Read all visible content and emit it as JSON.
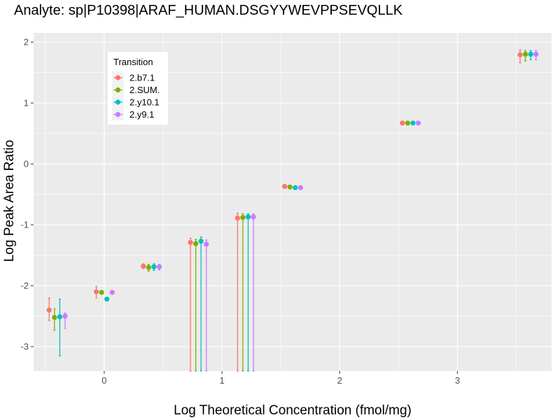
{
  "chart_data": {
    "type": "scatter",
    "title": "Analyte: sp|P10398|ARAF_HUMAN.DSGYYWEVPPSEVQLLK",
    "xlabel": "Log Theoretical Concentration (fmol/mg)",
    "ylabel": "Log Peak Area Ratio",
    "xlim": [
      -0.6,
      3.8
    ],
    "ylim": [
      -3.4,
      2.15
    ],
    "x_ticks": [
      0,
      1,
      2,
      3
    ],
    "x_tick_labels": [
      "0",
      "1",
      "2",
      "3"
    ],
    "y_ticks": [
      -3,
      -2,
      -1,
      0,
      1,
      2
    ],
    "y_tick_labels": [
      "-3",
      "-2",
      "-1",
      "0",
      "1",
      "2"
    ],
    "grid": true,
    "legend": {
      "title": "Transition",
      "position": "top-left-inside"
    },
    "series": [
      {
        "name": "2.b7.1",
        "color": "#F8766D",
        "points": [
          {
            "x": -0.4,
            "y": -2.4,
            "ymin": -2.57,
            "ymax": -2.2
          },
          {
            "x": 0.0,
            "y": -2.1,
            "ymin": -2.2,
            "ymax": -2.01
          },
          {
            "x": 0.4,
            "y": -1.68,
            "ymin": -1.72,
            "ymax": -1.64
          },
          {
            "x": 0.8,
            "y": -1.29,
            "ymin": -3.4,
            "ymax": -1.22
          },
          {
            "x": 1.2,
            "y": -0.89,
            "ymin": -3.4,
            "ymax": -0.81
          },
          {
            "x": 1.6,
            "y": -0.37,
            "ymin": -0.39,
            "ymax": -0.35
          },
          {
            "x": 2.6,
            "y": 0.67,
            "ymin": 0.66,
            "ymax": 0.68
          },
          {
            "x": 3.6,
            "y": 1.79,
            "ymin": 1.66,
            "ymax": 1.87
          }
        ]
      },
      {
        "name": "2.SUM.",
        "color": "#7CAE00",
        "points": [
          {
            "x": -0.4,
            "y": -2.52,
            "ymin": -2.73,
            "ymax": -2.38
          },
          {
            "x": 0.0,
            "y": -2.11,
            "ymin": -2.14,
            "ymax": -2.08
          },
          {
            "x": 0.4,
            "y": -1.7,
            "ymin": -1.76,
            "ymax": -1.65
          },
          {
            "x": 0.8,
            "y": -1.31,
            "ymin": -3.4,
            "ymax": -1.24
          },
          {
            "x": 1.2,
            "y": -0.88,
            "ymin": -3.4,
            "ymax": -0.82
          },
          {
            "x": 1.6,
            "y": -0.38,
            "ymin": -0.4,
            "ymax": -0.36
          },
          {
            "x": 2.6,
            "y": 0.67,
            "ymin": 0.66,
            "ymax": 0.68
          },
          {
            "x": 3.6,
            "y": 1.8,
            "ymin": 1.69,
            "ymax": 1.86
          }
        ]
      },
      {
        "name": "2.y10.1",
        "color": "#00BFC4",
        "points": [
          {
            "x": -0.4,
            "y": -2.51,
            "ymin": -3.15,
            "ymax": -2.22
          },
          {
            "x": 0.0,
            "y": -2.22,
            "ymin": -2.23,
            "ymax": -2.21
          },
          {
            "x": 0.4,
            "y": -1.69,
            "ymin": -1.75,
            "ymax": -1.64
          },
          {
            "x": 0.8,
            "y": -1.27,
            "ymin": -3.4,
            "ymax": -1.2
          },
          {
            "x": 1.2,
            "y": -0.87,
            "ymin": -3.4,
            "ymax": -0.82
          },
          {
            "x": 1.6,
            "y": -0.39,
            "ymin": -0.41,
            "ymax": -0.37
          },
          {
            "x": 2.6,
            "y": 0.67,
            "ymin": 0.66,
            "ymax": 0.68
          },
          {
            "x": 3.6,
            "y": 1.8,
            "ymin": 1.71,
            "ymax": 1.86
          }
        ]
      },
      {
        "name": "2.y9.1",
        "color": "#C77CFF",
        "points": [
          {
            "x": -0.4,
            "y": -2.5,
            "ymin": -2.7,
            "ymax": -2.45
          },
          {
            "x": 0.0,
            "y": -2.11,
            "ymin": -2.13,
            "ymax": -2.09
          },
          {
            "x": 0.4,
            "y": -1.69,
            "ymin": -1.74,
            "ymax": -1.65
          },
          {
            "x": 0.8,
            "y": -1.32,
            "ymin": -3.4,
            "ymax": -1.25
          },
          {
            "x": 1.2,
            "y": -0.87,
            "ymin": -3.4,
            "ymax": -0.82
          },
          {
            "x": 1.6,
            "y": -0.39,
            "ymin": -0.41,
            "ymax": -0.37
          },
          {
            "x": 2.6,
            "y": 0.67,
            "ymin": 0.66,
            "ymax": 0.68
          },
          {
            "x": 3.6,
            "y": 1.8,
            "ymin": 1.71,
            "ymax": 1.86
          }
        ]
      }
    ]
  }
}
